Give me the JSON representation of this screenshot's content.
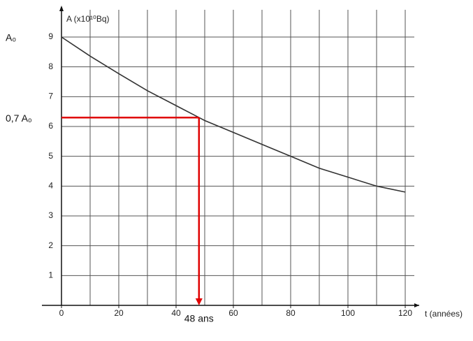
{
  "chart_data": {
    "type": "line",
    "x_label": "t (années)",
    "y_label": "A (x10¹⁰Bq)",
    "x": [
      0,
      10,
      20,
      30,
      40,
      48,
      50,
      60,
      70,
      80,
      90,
      100,
      110,
      120
    ],
    "series": [
      {
        "name": "A",
        "color": "#333333",
        "values": [
          9,
          8.36,
          7.77,
          7.2,
          6.7,
          6.3,
          6.2,
          5.8,
          5.4,
          5.0,
          4.6,
          4.3,
          4.0,
          3.8
        ]
      }
    ],
    "xlim": [
      0,
      120
    ],
    "ylim": [
      0,
      9
    ],
    "xticks": [
      0,
      20,
      40,
      60,
      80,
      100,
      120
    ],
    "xgrid": [
      10,
      20,
      30,
      40,
      50,
      60,
      70,
      80,
      90,
      100,
      110,
      120
    ],
    "yticks": [
      1,
      2,
      3,
      4,
      5,
      6,
      7,
      8,
      9
    ],
    "grid": true,
    "reference": {
      "x": 48,
      "y": 6.3,
      "color": "#e00000"
    },
    "annotations": [
      {
        "text": "A₀",
        "y": 9
      },
      {
        "text": "0,7 A₀",
        "y": 6.3
      },
      {
        "text": "48 ans",
        "x": 48
      }
    ]
  }
}
